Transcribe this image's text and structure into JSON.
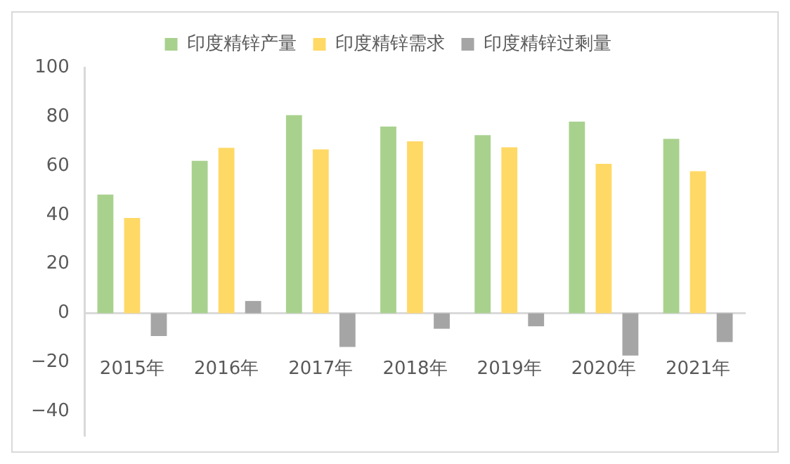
{
  "chart_data": {
    "type": "bar",
    "categories": [
      "2015年",
      "2016年",
      "2017年",
      "2018年",
      "2019年",
      "2020年",
      "2021年"
    ],
    "series": [
      {
        "name": "印度精锌产量",
        "color": "#a9d18e",
        "values": [
          48.3,
          62,
          80.6,
          76,
          72.5,
          78,
          71
        ]
      },
      {
        "name": "印度精锌需求",
        "color": "#ffd966",
        "values": [
          38.8,
          67.3,
          66.7,
          70,
          67.5,
          60.8,
          57.8
        ]
      },
      {
        "name": "印度精锌过剩量",
        "color": "#a5a5a5",
        "values": [
          -9.3,
          5,
          -13.7,
          -6.3,
          -5.3,
          -17.2,
          -11.7
        ]
      }
    ],
    "ylim": [
      -50,
      100
    ],
    "yticks": [
      {
        "value": -40,
        "label": "−40"
      },
      {
        "value": -20,
        "label": "−20"
      },
      0,
      20,
      40,
      60,
      80,
      100
    ],
    "grid": false,
    "legend": "top"
  }
}
